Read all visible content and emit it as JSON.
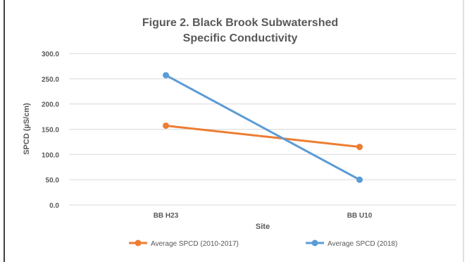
{
  "chart_data": {
    "type": "line",
    "title_lines": [
      "Figure 2. Black Brook Subwatershed",
      "Specific Conductivity"
    ],
    "xlabel": "Site",
    "ylabel": "SPCD (µS/cm)",
    "categories": [
      "BB H23",
      "BB U10"
    ],
    "ylim": [
      0,
      300
    ],
    "yticks": [
      0,
      50,
      100,
      150,
      200,
      250,
      300
    ],
    "ytick_labels": [
      "0.0",
      "50.0",
      "100.0",
      "150.0",
      "200.0",
      "250.0",
      "300.0"
    ],
    "grid": true,
    "legend_position": "bottom",
    "series": [
      {
        "name": "Average SPCD (2010-2017)",
        "values": [
          157,
          115
        ],
        "color": "#ED7D31"
      },
      {
        "name": "Average SPCD (2018)",
        "values": [
          257,
          50
        ],
        "color": "#5B9BD5"
      }
    ]
  },
  "colors": {
    "grid": "#d9d9d9",
    "border": "#bfbfbf",
    "text": "#595959"
  }
}
